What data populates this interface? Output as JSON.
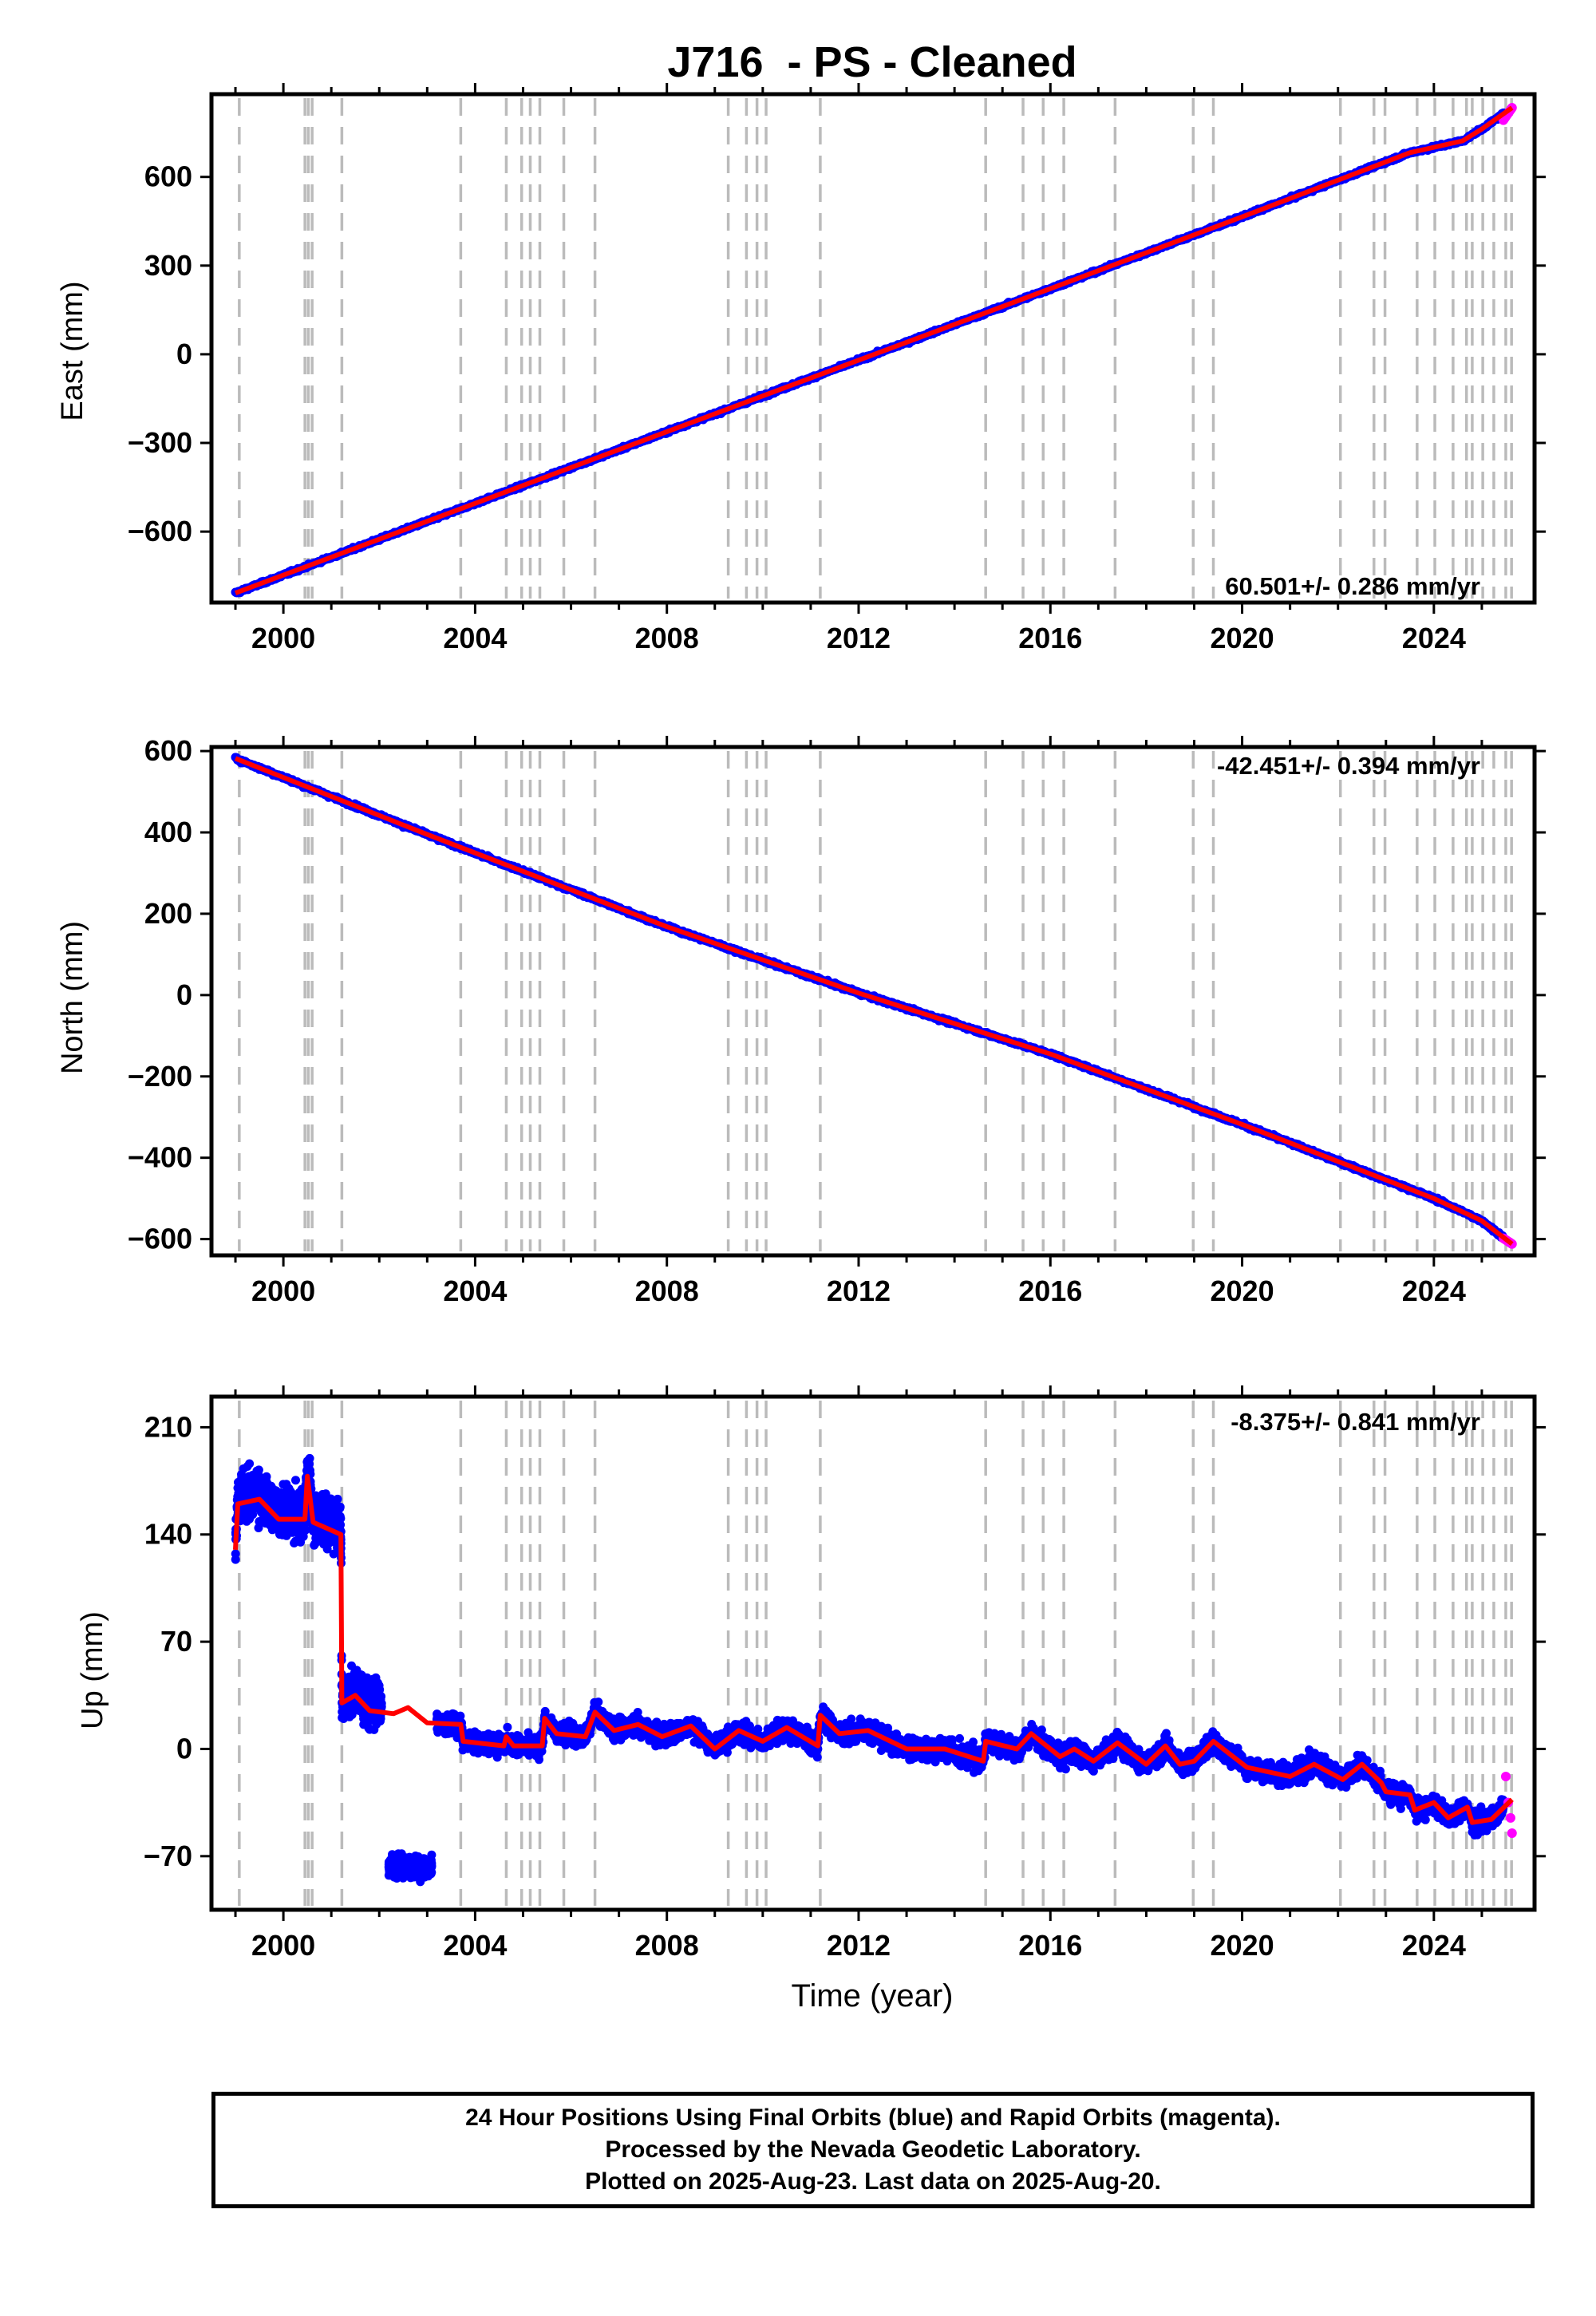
{
  "title": "J716  - PS - Cleaned",
  "xlabel": "Time (year)",
  "x_tick_labels": [
    "2000",
    "2004",
    "2008",
    "2012",
    "2016",
    "2020",
    "2024"
  ],
  "footer": {
    "line1": "24 Hour Positions Using Final Orbits (blue) and Rapid Orbits (magenta).",
    "line2": "Processed by the Nevada Geodetic Laboratory.",
    "line3": "Plotted on 2025-Aug-23. Last data on 2025-Aug-20."
  },
  "colors": {
    "final_orbits": "#0000ff",
    "rapid_orbits": "#ff00ff",
    "model_fit": "#ff0000",
    "event_lines": "#bbbbbb",
    "frame": "#000000"
  },
  "chart_data": [
    {
      "type": "scatter",
      "panel": "east",
      "ylabel": "East (mm)",
      "rate_label": "60.501+/- 0.286 mm/yr",
      "rate_label_position": "bottom-right",
      "xlim": [
        1998.5,
        2026.1
      ],
      "ylim": [
        -840,
        880
      ],
      "yticks": [
        -600,
        -300,
        0,
        300,
        600
      ],
      "ytick_labels": [
        "−600",
        "−300",
        "0",
        "300",
        "600"
      ],
      "grid": false,
      "series": [
        {
          "name": "Final Orbits",
          "x": [
            1999.0,
            2025.45
          ],
          "y": [
            -808,
            792
          ]
        },
        {
          "name": "Rapid Orbits",
          "x": [
            2025.45,
            2025.63
          ],
          "y": [
            792,
            834
          ]
        }
      ],
      "model_fit_points": [
        [
          1999.0,
          -808
        ],
        [
          2003.0,
          -565
        ],
        [
          2008.0,
          -262
        ],
        [
          2012.0,
          -20
        ],
        [
          2016.0,
          222
        ],
        [
          2020.0,
          465
        ],
        [
          2023.5,
          682
        ],
        [
          2024.6,
          722
        ],
        [
          2025.0,
          762
        ],
        [
          2025.63,
          834
        ]
      ]
    },
    {
      "type": "scatter",
      "panel": "north",
      "ylabel": "North (mm)",
      "rate_label": "-42.451+/- 0.394 mm/yr",
      "rate_label_position": "top-right",
      "xlim": [
        1998.5,
        2026.1
      ],
      "ylim": [
        -640,
        610
      ],
      "yticks": [
        -600,
        -400,
        -200,
        0,
        200,
        400,
        600
      ],
      "ytick_labels": [
        "−600",
        "−400",
        "−200",
        "0",
        "200",
        "400",
        "600"
      ],
      "grid": false,
      "series": [
        {
          "name": "Final Orbits",
          "x": [
            1999.0,
            2025.45
          ],
          "y": [
            582,
            -598
          ]
        },
        {
          "name": "Rapid Orbits",
          "x": [
            2025.45,
            2025.63
          ],
          "y": [
            -598,
            -612
          ]
        }
      ],
      "model_fit_points": [
        [
          1999.0,
          582
        ],
        [
          2003.0,
          395
        ],
        [
          2008.0,
          168
        ],
        [
          2012.0,
          5
        ],
        [
          2016.0,
          -145
        ],
        [
          2020.0,
          -318
        ],
        [
          2024.0,
          -500
        ],
        [
          2025.0,
          -555
        ],
        [
          2025.63,
          -612
        ]
      ]
    },
    {
      "type": "scatter",
      "panel": "up",
      "ylabel": "Up (mm)",
      "rate_label": "-8.375+/- 0.841 mm/yr",
      "rate_label_position": "top-right",
      "xlim": [
        1998.5,
        2026.1
      ],
      "ylim": [
        -105,
        230
      ],
      "yticks": [
        -70,
        0,
        70,
        140,
        210
      ],
      "ytick_labels": [
        "−70",
        "0",
        "70",
        "140",
        "210"
      ],
      "grid": false,
      "series": [
        {
          "name": "Final Orbits",
          "segments": [
            {
              "x_range": [
                1999.0,
                2002.05
              ],
              "mean": 150,
              "spread": 22
            },
            {
              "x_range": [
                2002.2,
                2003.1
              ],
              "mean": -77,
              "spread": 10
            },
            {
              "x_range": [
                2003.2,
                2025.45
              ],
              "mean_start": 5,
              "mean_end": -45,
              "spread": 10
            }
          ]
        },
        {
          "name": "Rapid Orbits",
          "x": [
            2025.5,
            2025.55,
            2025.6,
            2025.63
          ],
          "y": [
            -18,
            -35,
            -45,
            -55
          ]
        }
      ],
      "model_fit_points": [
        [
          1999.0,
          130
        ],
        [
          1999.05,
          160
        ],
        [
          1999.5,
          163
        ],
        [
          1999.9,
          150
        ],
        [
          2000.45,
          150
        ],
        [
          2000.5,
          178
        ],
        [
          2000.62,
          148
        ],
        [
          2001.2,
          140
        ],
        [
          2001.22,
          30
        ],
        [
          2001.5,
          35
        ],
        [
          2001.8,
          25
        ],
        [
          2002.3,
          23
        ],
        [
          2002.6,
          27
        ],
        [
          2003.0,
          17
        ],
        [
          2003.7,
          16
        ],
        [
          2003.75,
          5
        ],
        [
          2004.6,
          2
        ],
        [
          2004.65,
          8
        ],
        [
          2004.8,
          2
        ],
        [
          2005.4,
          2
        ],
        [
          2005.45,
          20
        ],
        [
          2005.7,
          10
        ],
        [
          2006.3,
          8
        ],
        [
          2006.5,
          24
        ],
        [
          2006.9,
          12
        ],
        [
          2007.4,
          16
        ],
        [
          2007.9,
          8
        ],
        [
          2008.5,
          15
        ],
        [
          2009.0,
          0
        ],
        [
          2009.5,
          12
        ],
        [
          2010.0,
          5
        ],
        [
          2010.5,
          14
        ],
        [
          2011.15,
          2
        ],
        [
          2011.2,
          22
        ],
        [
          2011.6,
          10
        ],
        [
          2012.2,
          12
        ],
        [
          2013.0,
          0
        ],
        [
          2013.8,
          0
        ],
        [
          2014.6,
          -8
        ],
        [
          2014.65,
          5
        ],
        [
          2015.3,
          0
        ],
        [
          2015.6,
          10
        ],
        [
          2016.2,
          -5
        ],
        [
          2016.5,
          0
        ],
        [
          2016.9,
          -8
        ],
        [
          2017.4,
          4
        ],
        [
          2018.0,
          -10
        ],
        [
          2018.4,
          2
        ],
        [
          2018.7,
          -10
        ],
        [
          2019.0,
          -8
        ],
        [
          2019.4,
          5
        ],
        [
          2020.1,
          -12
        ],
        [
          2021.0,
          -18
        ],
        [
          2021.5,
          -10
        ],
        [
          2022.1,
          -20
        ],
        [
          2022.5,
          -10
        ],
        [
          2022.9,
          -22
        ],
        [
          2023.0,
          -28
        ],
        [
          2023.5,
          -30
        ],
        [
          2023.6,
          -40
        ],
        [
          2024.0,
          -35
        ],
        [
          2024.3,
          -45
        ],
        [
          2024.7,
          -38
        ],
        [
          2024.8,
          -48
        ],
        [
          2025.2,
          -46
        ],
        [
          2025.63,
          -33
        ]
      ]
    }
  ],
  "event_line_years": [
    1999.08,
    2000.45,
    2000.52,
    2000.6,
    2001.22,
    2003.7,
    2004.65,
    2004.97,
    2005.15,
    2005.35,
    2005.85,
    2006.5,
    2009.28,
    2009.66,
    2009.88,
    2010.07,
    2011.2,
    2014.65,
    2015.43,
    2015.85,
    2016.28,
    2017.35,
    2018.98,
    2019.4,
    2022.05,
    2022.75,
    2022.98,
    2023.65,
    2024.02,
    2024.4,
    2024.68,
    2024.8,
    2025.02,
    2025.25,
    2025.5,
    2025.62
  ]
}
